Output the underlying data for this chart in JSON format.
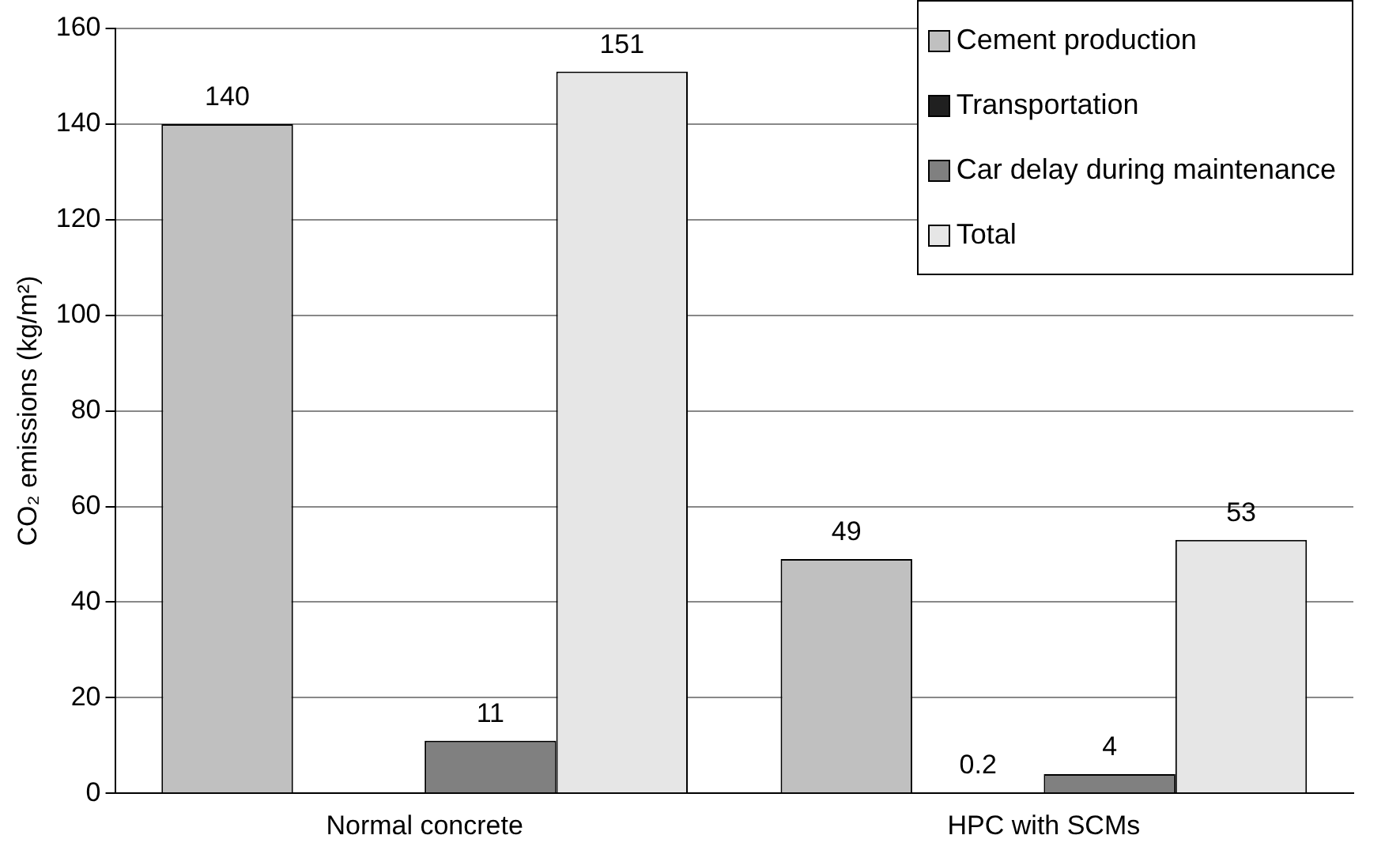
{
  "chart_data": {
    "type": "bar",
    "ylabel": "CO₂ emissions (kg/m²)",
    "categories": [
      "Normal concrete",
      "HPC with SCMs"
    ],
    "series": [
      {
        "name": "Cement production",
        "color": "#c0c0c0",
        "values": [
          140,
          49
        ],
        "value_labels": [
          "140",
          "49"
        ]
      },
      {
        "name": "Transportation",
        "color": "#202020",
        "values": [
          0,
          0.2
        ],
        "value_labels": [
          null,
          "0.2"
        ]
      },
      {
        "name": "Car delay during maintenance",
        "color": "#808080",
        "values": [
          11,
          4
        ],
        "value_labels": [
          "11",
          "4"
        ]
      },
      {
        "name": "Total",
        "color": "#e6e6e6",
        "values": [
          151,
          53
        ],
        "value_labels": [
          "151",
          "53"
        ]
      }
    ],
    "ylim": [
      0,
      160
    ],
    "yticks": [
      0,
      20,
      40,
      60,
      80,
      100,
      120,
      140,
      160
    ],
    "grid": "y",
    "legend": "top right"
  }
}
